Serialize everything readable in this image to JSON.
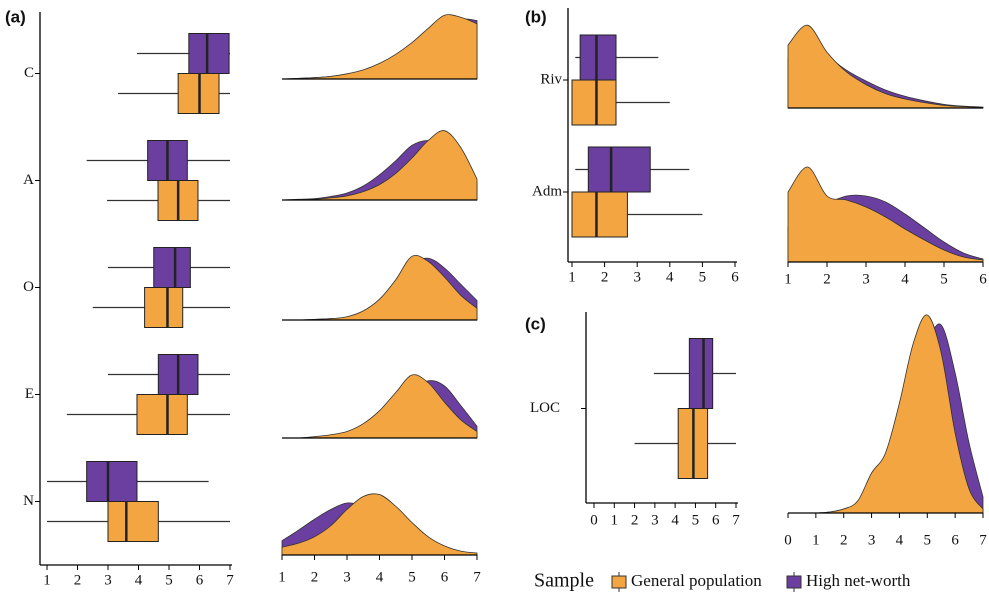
{
  "legend": {
    "title": "Sample"
  },
  "chart_data": [
    {
      "type": "box",
      "panel_label": "(a)",
      "categories": [
        "C",
        "A",
        "O",
        "E",
        "N"
      ],
      "xlim": [
        1,
        7
      ],
      "xticks": [
        1,
        2,
        3,
        4,
        5,
        6,
        7
      ],
      "series": [
        {
          "name": "General population",
          "color": "#F2A541",
          "values": [
            [
              3.33,
              5.3,
              6.0,
              6.64,
              7
            ],
            [
              2.97,
              4.64,
              5.3,
              5.95,
              7
            ],
            [
              2.5,
              4.2,
              4.95,
              5.45,
              7
            ],
            [
              1.65,
              3.95,
              4.95,
              5.6,
              7
            ],
            [
              1,
              3.0,
              3.6,
              4.65,
              7
            ]
          ]
        },
        {
          "name": "High net-worth",
          "color": "#6B3FA0",
          "values": [
            [
              3.95,
              5.65,
              6.25,
              6.97,
              7
            ],
            [
              2.3,
              4.3,
              4.95,
              5.6,
              7
            ],
            [
              3.0,
              4.5,
              5.2,
              5.7,
              7
            ],
            [
              3.0,
              4.65,
              5.3,
              5.95,
              7
            ],
            [
              1.0,
              2.3,
              3.0,
              3.95,
              6.3
            ]
          ]
        }
      ]
    },
    {
      "type": "density",
      "categories": [
        "C",
        "A",
        "O",
        "E",
        "N"
      ],
      "xlim": [
        1,
        7
      ],
      "xticks": [
        1,
        2,
        3,
        4,
        5,
        6,
        7
      ],
      "x": [
        1,
        1.5,
        2,
        2.5,
        3,
        3.5,
        4,
        4.5,
        5,
        5.5,
        6,
        6.5,
        7
      ],
      "series": [
        {
          "name": "General population",
          "color": "#F2A541",
          "values": [
            [
              0,
              0.01,
              0.02,
              0.04,
              0.08,
              0.14,
              0.24,
              0.38,
              0.56,
              0.78,
              0.98,
              0.95,
              0.85
            ],
            [
              0,
              0,
              0.01,
              0.03,
              0.06,
              0.12,
              0.22,
              0.38,
              0.6,
              0.85,
              0.99,
              0.75,
              0.3
            ],
            [
              0,
              0,
              0.01,
              0.02,
              0.05,
              0.14,
              0.32,
              0.62,
              0.98,
              0.9,
              0.66,
              0.38,
              0.18
            ],
            [
              0,
              0,
              0.02,
              0.05,
              0.1,
              0.22,
              0.42,
              0.7,
              0.97,
              0.85,
              0.55,
              0.28,
              0.1
            ],
            [
              0.12,
              0.18,
              0.28,
              0.45,
              0.7,
              0.9,
              0.93,
              0.75,
              0.5,
              0.28,
              0.14,
              0.06,
              0.03
            ]
          ]
        },
        {
          "name": "High net-worth",
          "color": "#6B3FA0",
          "values": [
            [
              0,
              0.01,
              0.02,
              0.04,
              0.07,
              0.11,
              0.18,
              0.28,
              0.42,
              0.6,
              0.8,
              0.92,
              0.9
            ],
            [
              0,
              0.01,
              0.02,
              0.05,
              0.1,
              0.2,
              0.36,
              0.56,
              0.78,
              0.85,
              0.78,
              0.55,
              0.25
            ],
            [
              0,
              0,
              0.01,
              0.02,
              0.04,
              0.1,
              0.24,
              0.5,
              0.86,
              0.95,
              0.8,
              0.55,
              0.3
            ],
            [
              0,
              0,
              0.01,
              0.02,
              0.05,
              0.12,
              0.25,
              0.45,
              0.7,
              0.88,
              0.8,
              0.5,
              0.18
            ],
            [
              0.22,
              0.38,
              0.55,
              0.7,
              0.8,
              0.75,
              0.6,
              0.42,
              0.26,
              0.14,
              0.07,
              0.03,
              0.01
            ]
          ]
        }
      ]
    },
    {
      "type": "box",
      "panel_label": "(b)",
      "categories": [
        "Riv",
        "Adm"
      ],
      "xlim": [
        1,
        6
      ],
      "xticks": [
        1,
        2,
        3,
        4,
        5,
        6
      ],
      "series": [
        {
          "name": "General population",
          "color": "#F2A541",
          "values": [
            [
              1,
              1,
              1.75,
              2.35,
              4.0
            ],
            [
              1,
              1,
              1.75,
              2.7,
              5.0
            ]
          ]
        },
        {
          "name": "High net-worth",
          "color": "#6B3FA0",
          "values": [
            [
              1.1,
              1.25,
              1.75,
              2.35,
              3.65
            ],
            [
              1.1,
              1.5,
              2.2,
              3.4,
              4.6
            ]
          ]
        }
      ]
    },
    {
      "type": "density",
      "categories": [
        "Riv",
        "Adm"
      ],
      "xlim": [
        1,
        6
      ],
      "xticks": [
        1,
        2,
        3,
        4,
        5,
        6
      ],
      "x": [
        1,
        1.5,
        2,
        2.5,
        3,
        3.5,
        4,
        4.5,
        5,
        5.5,
        6
      ],
      "series": [
        {
          "name": "General population",
          "color": "#F2A541",
          "values": [
            [
              0.7,
              0.92,
              0.62,
              0.4,
              0.26,
              0.16,
              0.1,
              0.06,
              0.03,
              0.015,
              0.005
            ],
            [
              0.7,
              0.95,
              0.66,
              0.62,
              0.55,
              0.45,
              0.33,
              0.22,
              0.12,
              0.05,
              0.02
            ]
          ]
        },
        {
          "name": "High net-worth",
          "color": "#6B3FA0",
          "values": [
            [
              0.55,
              0.72,
              0.58,
              0.42,
              0.3,
              0.2,
              0.13,
              0.08,
              0.04,
              0.02,
              0.01
            ],
            [
              0.35,
              0.45,
              0.58,
              0.66,
              0.66,
              0.6,
              0.48,
              0.34,
              0.2,
              0.09,
              0.03
            ]
          ]
        }
      ]
    },
    {
      "type": "box",
      "panel_label": "(c)",
      "categories": [
        "LOC"
      ],
      "xlim": [
        0,
        7
      ],
      "xticks": [
        0,
        1,
        2,
        3,
        4,
        5,
        6,
        7
      ],
      "series": [
        {
          "name": "General population",
          "color": "#F2A541",
          "values": [
            [
              2.0,
              4.15,
              4.9,
              5.6,
              7
            ]
          ]
        },
        {
          "name": "High net-worth",
          "color": "#6B3FA0",
          "values": [
            [
              2.95,
              4.7,
              5.4,
              5.85,
              7.0
            ]
          ]
        }
      ]
    },
    {
      "type": "density",
      "categories": [
        "LOC"
      ],
      "xlim": [
        0,
        7
      ],
      "xticks": [
        0,
        1,
        2,
        3,
        4,
        5,
        6,
        7
      ],
      "x": [
        0,
        0.5,
        1,
        1.5,
        2,
        2.5,
        3,
        3.5,
        4,
        4.5,
        5,
        5.5,
        6,
        6.5,
        7
      ],
      "series": [
        {
          "name": "General population",
          "color": "#F2A541",
          "values": [
            [
              0,
              0,
              0,
              0.005,
              0.02,
              0.06,
              0.2,
              0.3,
              0.55,
              0.85,
              0.99,
              0.8,
              0.4,
              0.12,
              0.02
            ]
          ]
        },
        {
          "name": "High net-worth",
          "color": "#6B3FA0",
          "values": [
            [
              0,
              0,
              0,
              0.005,
              0.02,
              0.05,
              0.16,
              0.28,
              0.45,
              0.65,
              0.85,
              0.94,
              0.7,
              0.35,
              0.08
            ]
          ]
        }
      ]
    }
  ]
}
